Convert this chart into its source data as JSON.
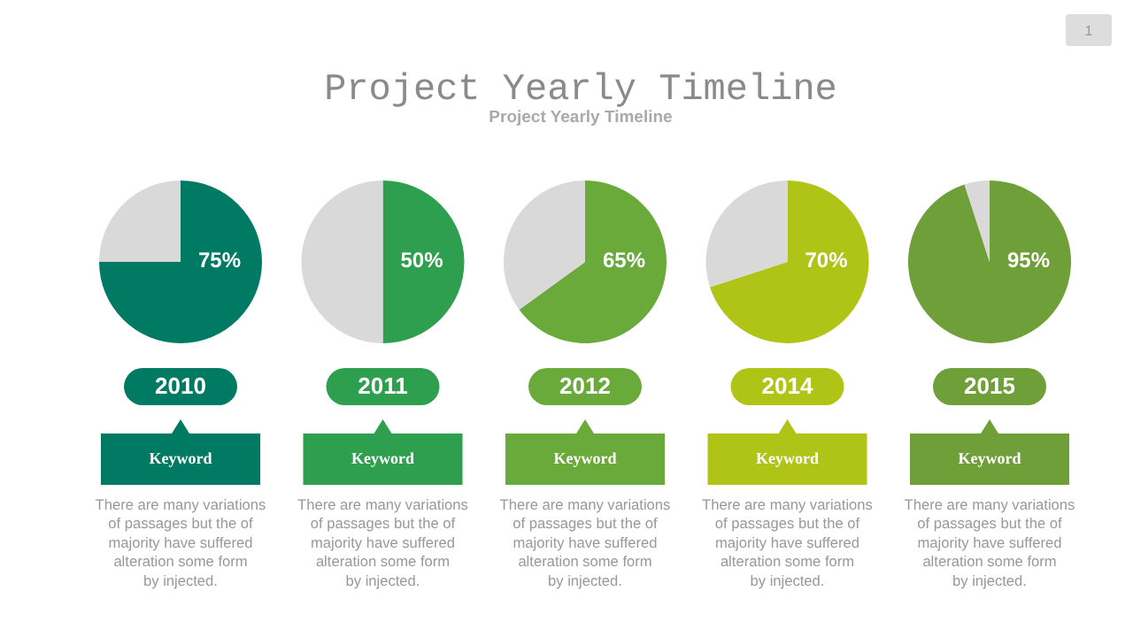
{
  "chart_data": [
    {
      "type": "other",
      "title": "Project Yearly Timeline",
      "subtitle": "Project Yearly Timeline",
      "annotations": [
        "1"
      ]
    },
    {
      "type": "pie",
      "title": "2010",
      "subtitle": "Keyword",
      "categories": [
        null,
        null
      ],
      "values": [
        75,
        25
      ],
      "colors": [
        "#007a63",
        "#d9d9d9"
      ],
      "value_labels": [
        "75%",
        null
      ],
      "annotations": [
        "There are many variations\nof passages but the of\nmajority have suffered\nalteration some form\nby injected."
      ]
    },
    {
      "type": "pie",
      "title": "2011",
      "subtitle": "Keyword",
      "categories": [
        null,
        null
      ],
      "values": [
        50,
        50
      ],
      "colors": [
        "#2e9e4f",
        "#d9d9d9"
      ],
      "value_labels": [
        "50%",
        null
      ],
      "annotations": [
        "There are many variations\nof passages but the of\nmajority have suffered\nalteration some form\nby injected."
      ]
    },
    {
      "type": "pie",
      "title": "2012",
      "subtitle": "Keyword",
      "categories": [
        null,
        null
      ],
      "values": [
        65,
        35
      ],
      "colors": [
        "#6aaa3a",
        "#d9d9d9"
      ],
      "value_labels": [
        "65%",
        null
      ],
      "annotations": [
        "There are many variations\nof passages but the of\nmajority have suffered\nalteration some form\nby injected."
      ]
    },
    {
      "type": "pie",
      "title": "2014",
      "subtitle": "Keyword",
      "categories": [
        null,
        null
      ],
      "values": [
        70,
        30
      ],
      "colors": [
        "#b0c418",
        "#d9d9d9"
      ],
      "value_labels": [
        "70%",
        null
      ],
      "annotations": [
        "There are many variations\nof passages but the of\nmajority have suffered\nalteration some form\nby injected."
      ]
    },
    {
      "type": "pie",
      "title": "2015",
      "subtitle": "Keyword",
      "categories": [
        null,
        null
      ],
      "values": [
        95,
        5
      ],
      "colors": [
        "#6f9f38",
        "#d9d9d9"
      ],
      "value_labels": [
        "95%",
        null
      ],
      "annotations": [
        "There are many variations\nof passages but the of\nmajority have suffered\nalteration some form\nby injected."
      ]
    }
  ]
}
